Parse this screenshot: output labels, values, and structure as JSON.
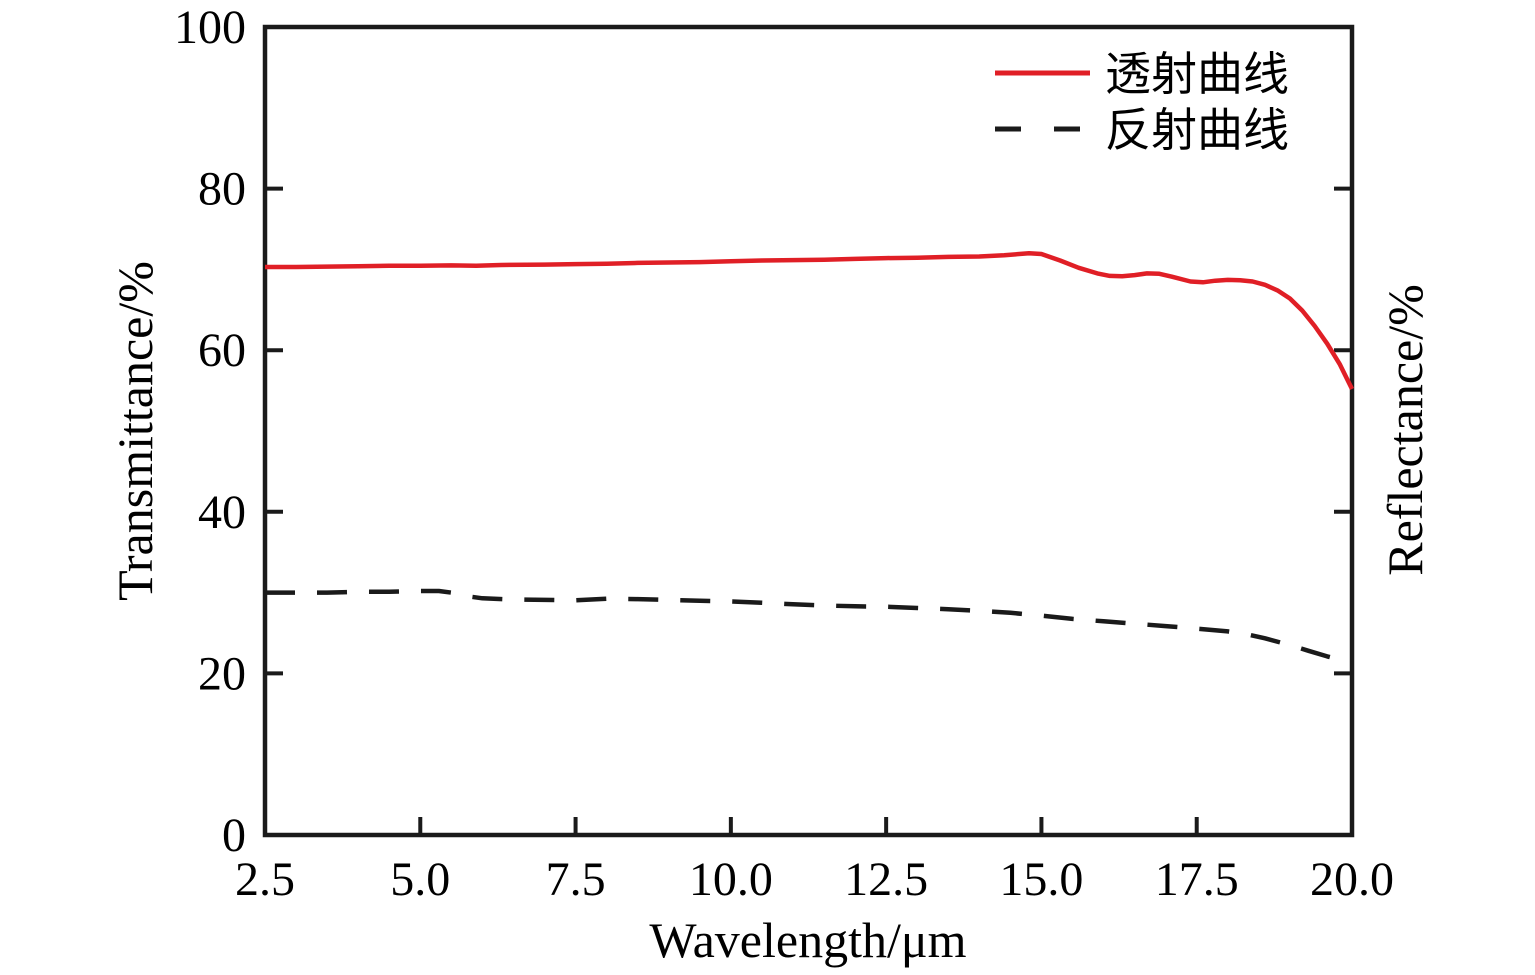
{
  "figure": {
    "background": "#ffffff",
    "frame_color": "#1a1a1a",
    "text_color": "#000000",
    "accent_red": "#e01f26"
  },
  "chart_data": {
    "type": "line",
    "title": "",
    "xlabel": "Wavelength/μm",
    "ylabel_left": "Transmittance/%",
    "ylabel_right": "Reflectance/%",
    "xlim": [
      2.5,
      20.0
    ],
    "ylim": [
      0,
      100
    ],
    "grid": false,
    "frame": "box",
    "ticks_direction": "in",
    "x_tick_values": [
      2.5,
      5.0,
      7.5,
      10.0,
      12.5,
      15.0,
      17.5,
      20.0
    ],
    "x_tick_labels": [
      "2.5",
      "5.0",
      "7.5",
      "10.0",
      "12.5",
      "15.0",
      "17.5",
      "20.0"
    ],
    "y_tick_values": [
      0,
      20,
      40,
      60,
      80,
      100
    ],
    "y_tick_labels": [
      "0",
      "20",
      "40",
      "60",
      "80",
      "100"
    ],
    "legend_position": "upper-right",
    "legend": [
      {
        "label": "透射曲线",
        "color": "#e01f26",
        "style": "solid"
      },
      {
        "label": "反射曲线",
        "color": "#1a1a1a",
        "style": "dashed"
      }
    ],
    "series": [
      {
        "name": "透射曲线",
        "name_en": "Transmittance",
        "yaxis": "left",
        "color": "#e01f26",
        "style": "solid",
        "points": [
          [
            2.5,
            70.3
          ],
          [
            3.0,
            70.3
          ],
          [
            3.5,
            70.35
          ],
          [
            4.0,
            70.4
          ],
          [
            4.5,
            70.45
          ],
          [
            5.0,
            70.45
          ],
          [
            5.5,
            70.5
          ],
          [
            5.9,
            70.45
          ],
          [
            6.3,
            70.55
          ],
          [
            7.0,
            70.6
          ],
          [
            7.5,
            70.65
          ],
          [
            8.0,
            70.7
          ],
          [
            8.5,
            70.8
          ],
          [
            9.0,
            70.85
          ],
          [
            9.5,
            70.9
          ],
          [
            10.0,
            71.0
          ],
          [
            10.5,
            71.1
          ],
          [
            11.0,
            71.15
          ],
          [
            11.5,
            71.2
          ],
          [
            12.0,
            71.3
          ],
          [
            12.5,
            71.4
          ],
          [
            13.0,
            71.45
          ],
          [
            13.5,
            71.55
          ],
          [
            14.0,
            71.6
          ],
          [
            14.4,
            71.75
          ],
          [
            14.8,
            72.0
          ],
          [
            15.0,
            71.9
          ],
          [
            15.3,
            71.1
          ],
          [
            15.6,
            70.2
          ],
          [
            15.9,
            69.5
          ],
          [
            16.1,
            69.2
          ],
          [
            16.3,
            69.15
          ],
          [
            16.5,
            69.3
          ],
          [
            16.7,
            69.5
          ],
          [
            16.9,
            69.45
          ],
          [
            17.1,
            69.1
          ],
          [
            17.4,
            68.5
          ],
          [
            17.6,
            68.4
          ],
          [
            17.8,
            68.6
          ],
          [
            18.0,
            68.7
          ],
          [
            18.2,
            68.65
          ],
          [
            18.4,
            68.5
          ],
          [
            18.6,
            68.1
          ],
          [
            18.8,
            67.4
          ],
          [
            19.0,
            66.4
          ],
          [
            19.2,
            64.9
          ],
          [
            19.4,
            63.0
          ],
          [
            19.6,
            60.8
          ],
          [
            19.8,
            58.3
          ],
          [
            20.0,
            55.2
          ]
        ]
      },
      {
        "name": "反射曲线",
        "name_en": "Reflectance",
        "yaxis": "right",
        "color": "#1a1a1a",
        "style": "dashed",
        "points": [
          [
            2.5,
            30.0
          ],
          [
            3.0,
            30.0
          ],
          [
            3.5,
            30.0
          ],
          [
            4.0,
            30.1
          ],
          [
            4.5,
            30.1
          ],
          [
            5.0,
            30.2
          ],
          [
            5.3,
            30.2
          ],
          [
            5.5,
            30.0
          ],
          [
            5.8,
            29.5
          ],
          [
            6.0,
            29.3
          ],
          [
            6.5,
            29.15
          ],
          [
            7.0,
            29.1
          ],
          [
            7.5,
            29.05
          ],
          [
            8.0,
            29.25
          ],
          [
            8.5,
            29.2
          ],
          [
            9.0,
            29.1
          ],
          [
            9.5,
            29.0
          ],
          [
            10.0,
            28.9
          ],
          [
            10.5,
            28.75
          ],
          [
            11.0,
            28.55
          ],
          [
            11.5,
            28.4
          ],
          [
            12.0,
            28.3
          ],
          [
            12.5,
            28.25
          ],
          [
            13.0,
            28.1
          ],
          [
            13.5,
            27.95
          ],
          [
            14.0,
            27.75
          ],
          [
            14.5,
            27.5
          ],
          [
            15.0,
            27.15
          ],
          [
            15.5,
            26.75
          ],
          [
            16.0,
            26.45
          ],
          [
            16.5,
            26.15
          ],
          [
            17.0,
            25.85
          ],
          [
            17.5,
            25.55
          ],
          [
            18.0,
            25.2
          ],
          [
            18.3,
            24.85
          ],
          [
            18.6,
            24.35
          ],
          [
            19.0,
            23.5
          ],
          [
            19.3,
            22.8
          ],
          [
            19.6,
            22.1
          ],
          [
            20.0,
            21.3
          ]
        ]
      }
    ]
  }
}
